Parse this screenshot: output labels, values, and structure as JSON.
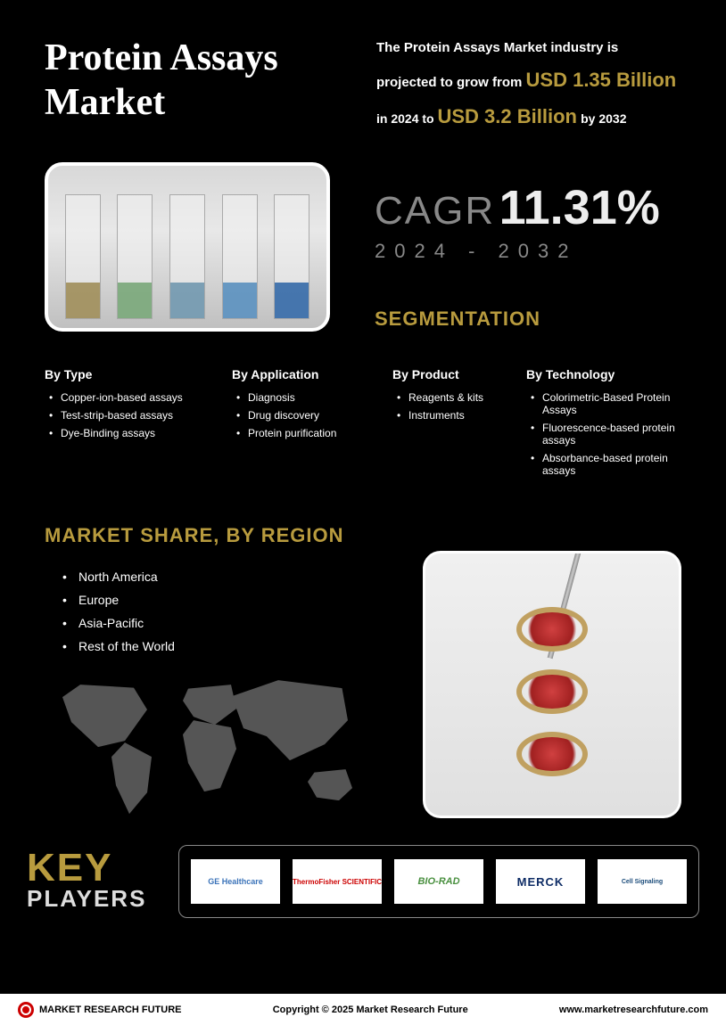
{
  "header": {
    "title": "Protein Assays Market",
    "projection_pre": "The Protein Assays Market industry is projected to grow from ",
    "value_from": "USD 1.35 Billion",
    "year_from": " in 2024 to ",
    "value_to": "USD 3.2 Billion",
    "year_to": " by 2032"
  },
  "cagr": {
    "label": "CAGR",
    "value": "11.31%",
    "period": "2024 - 2032"
  },
  "segmentation_heading": "SEGMENTATION",
  "segments": {
    "type": {
      "title": "By Type",
      "items": [
        "Copper-ion-based assays",
        "Test-strip-based assays",
        "Dye-Binding assays"
      ]
    },
    "application": {
      "title": "By Application",
      "items": [
        "Diagnosis",
        "Drug discovery",
        "Protein purification"
      ]
    },
    "product": {
      "title": "By Product",
      "items": [
        "Reagents & kits",
        "Instruments"
      ]
    },
    "technology": {
      "title": "By Technology",
      "items": [
        "Colorimetric-Based Protein Assays",
        "Fluorescence-based protein assays",
        "Absorbance-based protein assays"
      ]
    }
  },
  "region": {
    "heading": "MARKET SHARE, BY REGION",
    "items": [
      "North America",
      "Europe",
      "Asia-Pacific",
      "Rest of the World"
    ]
  },
  "key_players": {
    "word1": "KEY",
    "word2": "PLAYERS",
    "players": [
      "GE Healthcare",
      "ThermoFisher SCIENTIFIC",
      "BIO-RAD",
      "MERCK",
      "Cell Signaling"
    ]
  },
  "footer": {
    "brand": "MARKET RESEARCH FUTURE",
    "copyright": "Copyright © 2025 Market Research Future",
    "url": "www.marketresearchfuture.com"
  },
  "colors": {
    "accent": "#b89b3e",
    "bg": "#000000",
    "muted": "#888888"
  }
}
